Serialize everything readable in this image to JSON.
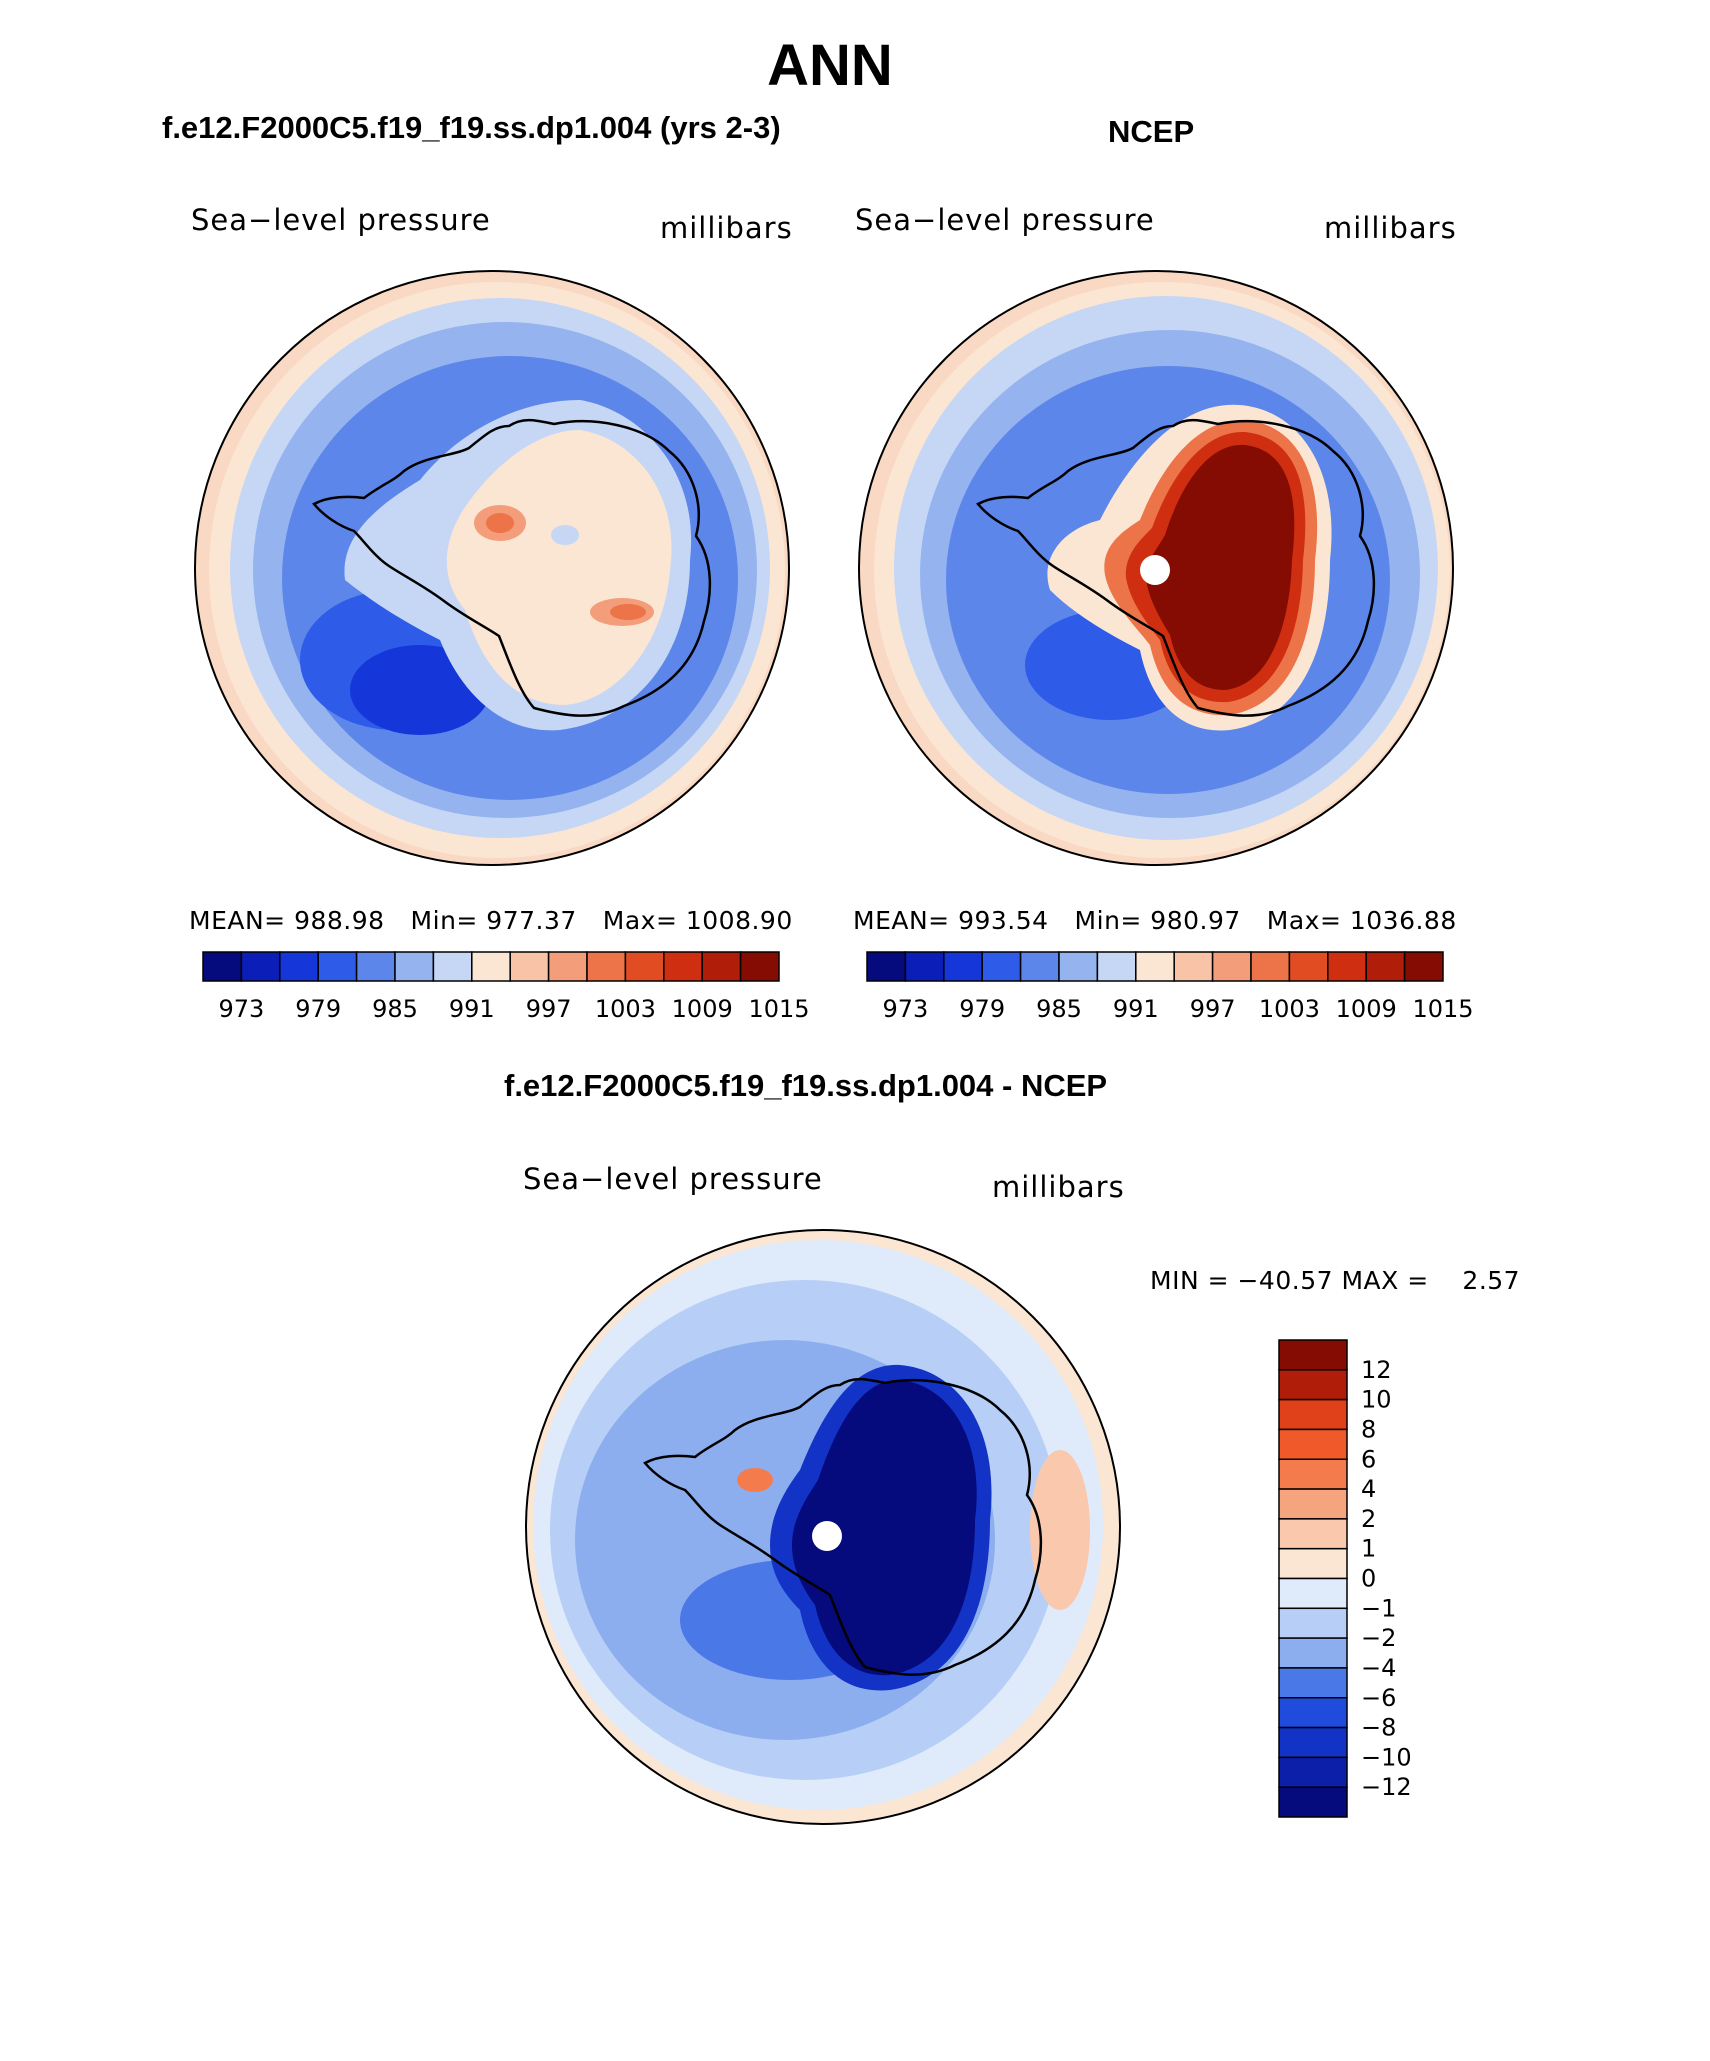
{
  "figure": {
    "title": "ANN",
    "panels": [
      {
        "id": "model",
        "case_title": "f.e12.F2000C5.f19_f19.ss.dp1.004 (yrs 2-3)",
        "variable": "Sea−level pressure",
        "units": "millibars",
        "stats": {
          "mean_label": "MEAN= 988.98",
          "min_label": "Min= 977.37",
          "max_label": "Max= 1008.90"
        }
      },
      {
        "id": "obs",
        "case_title": "NCEP",
        "variable": "Sea−level pressure",
        "units": "millibars",
        "stats": {
          "mean_label": "MEAN= 993.54",
          "min_label": "Min= 980.97",
          "max_label": "Max= 1036.88"
        }
      },
      {
        "id": "diff",
        "case_title": "f.e12.F2000C5.f19_f19.ss.dp1.004 - NCEP",
        "variable": "Sea−level pressure",
        "units": "millibars",
        "minmax_label": "MIN = −40.57 MAX =    2.57"
      }
    ]
  },
  "chart_data": [
    {
      "type": "heatmap",
      "projection": "south polar stereographic",
      "title": "f.e12.F2000C5.f19_f19.ss.dp1.004 (yrs 2-3)",
      "variable": "Sea-level pressure",
      "units": "millibars",
      "mean": 988.98,
      "min": 977.37,
      "max": 1008.9,
      "colorbar_ticks": [
        "973",
        "979",
        "985",
        "991",
        "997",
        "1003",
        "1009",
        "1015"
      ],
      "colors": [
        "#050a7d",
        "#0b1fb8",
        "#1536d9",
        "#2e5be8",
        "#5c86ea",
        "#95b3ef",
        "#c5d7f5",
        "#fbe6d4",
        "#f8c3a6",
        "#f39d7a",
        "#ec7448",
        "#e24c23",
        "#cf2f10",
        "#b01e09",
        "#850c03"
      ]
    },
    {
      "type": "heatmap",
      "projection": "south polar stereographic",
      "title": "NCEP",
      "variable": "Sea-level pressure",
      "units": "millibars",
      "mean": 993.54,
      "min": 980.97,
      "max": 1036.88,
      "colorbar_ticks": [
        "973",
        "979",
        "985",
        "991",
        "997",
        "1003",
        "1009",
        "1015"
      ],
      "colors": [
        "#050a7d",
        "#0b1fb8",
        "#1536d9",
        "#2e5be8",
        "#5c86ea",
        "#95b3ef",
        "#c5d7f5",
        "#fbe6d4",
        "#f8c3a6",
        "#f39d7a",
        "#ec7448",
        "#e24c23",
        "#cf2f10",
        "#b01e09",
        "#850c03"
      ]
    },
    {
      "type": "heatmap",
      "projection": "south polar stereographic",
      "title": "f.e12.F2000C5.f19_f19.ss.dp1.004 - NCEP",
      "variable": "Sea-level pressure",
      "units": "millibars",
      "min": -40.57,
      "max": 2.57,
      "colorbar_ticks": [
        "12",
        "10",
        "8",
        "6",
        "4",
        "2",
        "1",
        "0",
        "−1",
        "−2",
        "−4",
        "−6",
        "−8",
        "−10",
        "−12"
      ],
      "colors": [
        "#850c03",
        "#b01e09",
        "#e0401a",
        "#f05a2a",
        "#f47c4c",
        "#f6a47e",
        "#f9c8ad",
        "#fbe6d4",
        "#dfeafb",
        "#b7cff6",
        "#8caeee",
        "#4a78e6",
        "#1f4cdd",
        "#1233c6",
        "#0b1fa8",
        "#050a7d"
      ]
    }
  ]
}
